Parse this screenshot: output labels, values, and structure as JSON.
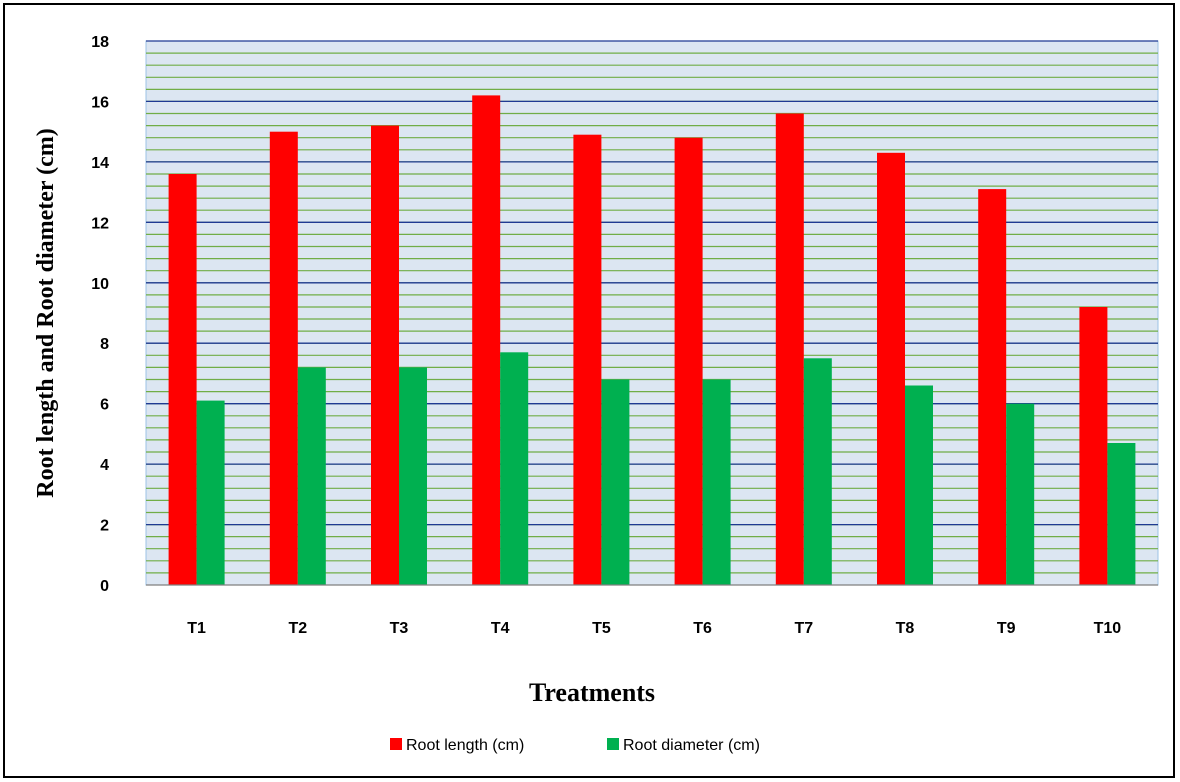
{
  "chart_data": {
    "type": "bar",
    "title": "",
    "xlabel": "Treatments",
    "ylabel": "Root length and Root diameter (cm)",
    "categories": [
      "T1",
      "T2",
      "T3",
      "T4",
      "T5",
      "T6",
      "T7",
      "T8",
      "T9",
      "T10"
    ],
    "series": [
      {
        "name": "Root length (cm)",
        "color": "#ff0000",
        "values": [
          13.6,
          15.0,
          15.2,
          16.2,
          14.9,
          14.8,
          15.6,
          14.3,
          13.1,
          9.2
        ]
      },
      {
        "name": "Root diameter (cm)",
        "color": "#00b050",
        "values": [
          6.1,
          7.2,
          7.2,
          7.7,
          6.8,
          6.8,
          7.5,
          6.6,
          6.0,
          4.7
        ]
      }
    ],
    "ylim": [
      0,
      18
    ],
    "yticks": [
      0,
      2,
      4,
      6,
      8,
      10,
      12,
      14,
      16,
      18
    ],
    "grid": "on",
    "grid_colors": {
      "major": "#1f3a93",
      "minor": "#70ad47",
      "background": "#dce6f2"
    },
    "legend_position": "bottom"
  }
}
